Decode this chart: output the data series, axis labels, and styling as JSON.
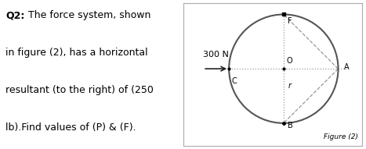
{
  "text_lines": [
    {
      "text": "Q2:",
      "bold": true
    },
    {
      "text": " The force system, shown",
      "bold": false
    },
    {
      "text": "in figure (2), has a horizontal",
      "bold": false
    },
    {
      "text": "resultant (to the right) of (250",
      "bold": false
    },
    {
      "text": "lb).Find values of (P) & (F).",
      "bold": false
    }
  ],
  "background_color": "#ffffff",
  "circle_color": "#555555",
  "dashed_color": "#999999",
  "arrow_color": "#222222",
  "label_font_size": 7,
  "text_font_size": 9,
  "force_label_font_size": 8,
  "fig_label": "Figure (2)",
  "box_color": "#aaaaaa"
}
